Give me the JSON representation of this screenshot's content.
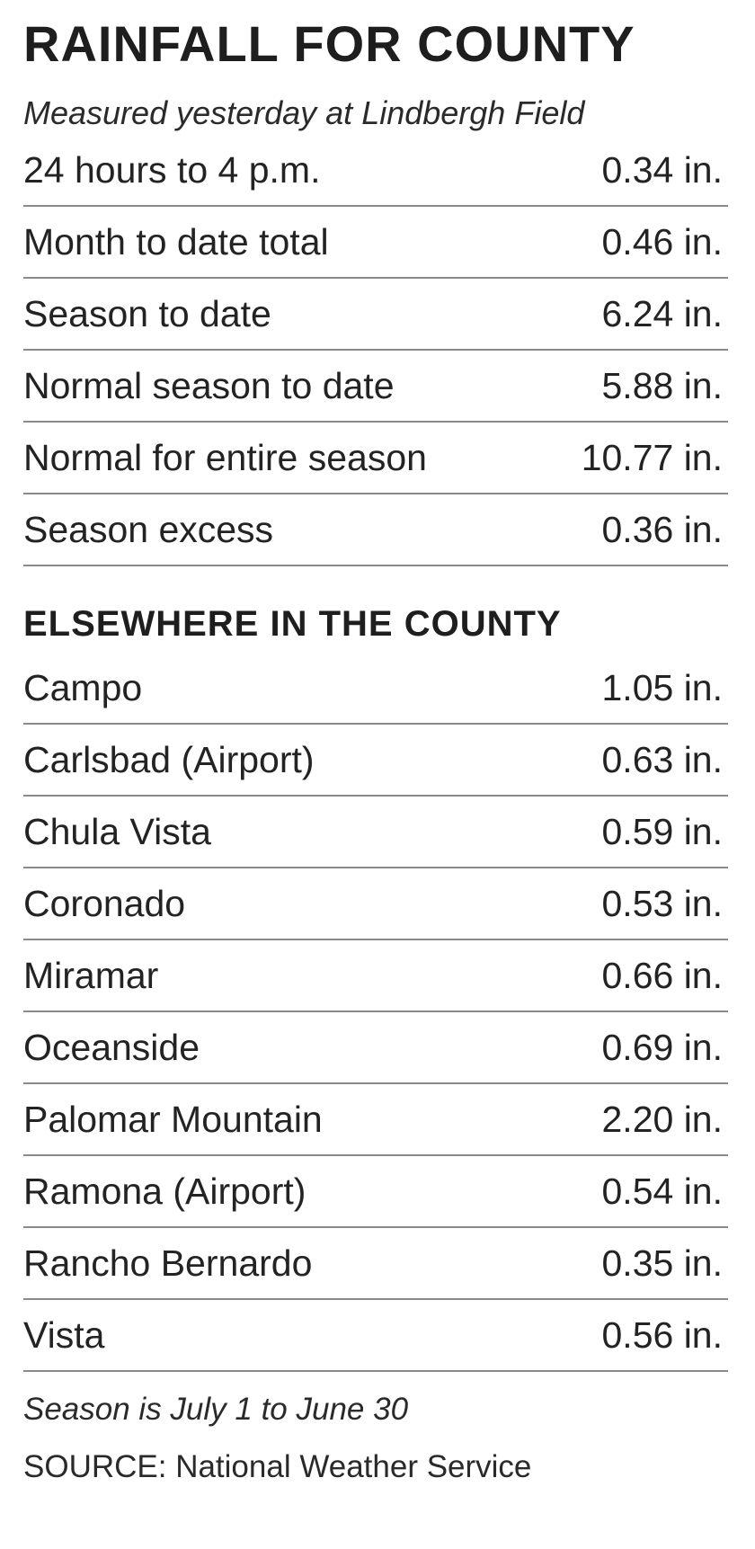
{
  "title": "RAINFALL FOR COUNTY",
  "subtitle": "Measured yesterday at Lindbergh Field",
  "main_rows": [
    {
      "label": "24 hours to 4 p.m.",
      "value": "0.34 in."
    },
    {
      "label": "Month to date total",
      "value": "0.46 in."
    },
    {
      "label": "Season to date",
      "value": "6.24 in."
    },
    {
      "label": "Normal season to date",
      "value": "5.88 in."
    },
    {
      "label": "Normal for entire season",
      "value": "10.77 in."
    },
    {
      "label": "Season excess",
      "value": "0.36 in."
    }
  ],
  "section_heading": "ELSEWHERE IN THE COUNTY",
  "locations": [
    {
      "label": "Campo",
      "value": "1.05 in."
    },
    {
      "label": "Carlsbad (Airport)",
      "value": "0.63 in."
    },
    {
      "label": "Chula Vista",
      "value": "0.59 in."
    },
    {
      "label": "Coronado",
      "value": "0.53 in."
    },
    {
      "label": "Miramar",
      "value": "0.66 in."
    },
    {
      "label": "Oceanside",
      "value": "0.69 in."
    },
    {
      "label": "Palomar Mountain",
      "value": "2.20 in."
    },
    {
      "label": "Ramona (Airport)",
      "value": "0.54 in."
    },
    {
      "label": "Rancho Bernardo",
      "value": "0.35 in."
    },
    {
      "label": "Vista",
      "value": "0.56 in."
    }
  ],
  "footnote": "Season is July 1 to June 30",
  "source": "SOURCE: National Weather Service"
}
